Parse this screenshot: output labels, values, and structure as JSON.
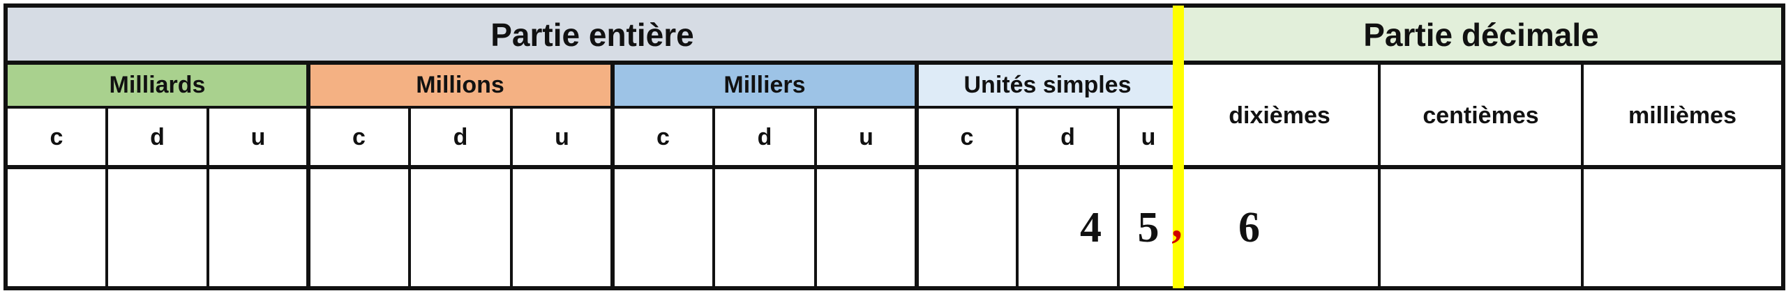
{
  "header": {
    "integer_part": "Partie entière",
    "decimal_part": "Partie décimale"
  },
  "groups": [
    {
      "label": "Milliards",
      "color": "#a9d18e"
    },
    {
      "label": "Millions",
      "color": "#f4b183"
    },
    {
      "label": "Milliers",
      "color": "#9dc3e6"
    },
    {
      "label": "Unités simples",
      "color": "#deebf7"
    }
  ],
  "colors": {
    "integer_header": "#d6dce4",
    "decimal_header": "#e2efda",
    "separator": "#ffff00",
    "comma": "#d00000"
  },
  "sub_columns": [
    "c",
    "d",
    "u"
  ],
  "decimal_columns": [
    "dixièmes",
    "centièmes",
    "millièmes"
  ],
  "values": {
    "units_d": "4",
    "units_u": "5",
    "comma": ",",
    "dixiemes": "6"
  }
}
